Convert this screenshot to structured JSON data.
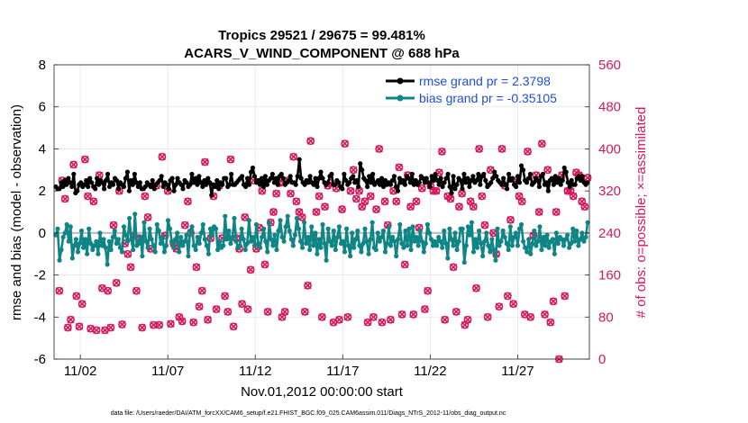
{
  "chart_data": {
    "type": "line",
    "title_line1": "Tropics 29521 / 29675 = 99.481%",
    "title_line2": "ACARS_V_WIND_COMPONENT @ 688 hPa",
    "xlabel": "Nov.01,2012 00:00:00 start",
    "ylabel_left": "rmse and bias (model - observation)",
    "ylabel_right": "# of obs: o=possible; ×=assimilated",
    "ylim_left": [
      -6,
      8
    ],
    "ylim_right": [
      0,
      560
    ],
    "xlim": [
      0.5,
      31.1
    ],
    "left_ticks": [
      -6,
      -4,
      -2,
      0,
      2,
      4,
      6,
      8
    ],
    "right_ticks": [
      0,
      80,
      160,
      240,
      320,
      400,
      480,
      560
    ],
    "x_tick_labels": [
      {
        "x": 2,
        "label": "11/02"
      },
      {
        "x": 7,
        "label": "11/07"
      },
      {
        "x": 12,
        "label": "11/12"
      },
      {
        "x": 17,
        "label": "11/17"
      },
      {
        "x": 22,
        "label": "11/22"
      },
      {
        "x": 27,
        "label": "11/27"
      }
    ],
    "footnote": "data file: /Users/raeder/DAI/ATM_forcXX/CAM6_setup/f.e21.FHIST_BGC.f09_025.CAM6assim.011/Diags_NTrS_2012-11/obs_diag_output.nc",
    "colors": {
      "rmse": "#000000",
      "bias": "#0f8585",
      "obs": "#d6185a",
      "zero": "#bfbfbf",
      "legend_text": "#1f4fd8"
    },
    "series": [
      {
        "name": "rmse grand pr = 2.3798",
        "values": [
          2.2,
          2.1,
          2.1,
          2.4,
          2.2,
          2.5,
          2.3,
          2.6,
          2.4,
          2.2,
          2.8,
          1.9,
          2.0,
          2.3,
          2.4,
          2.2,
          2.3,
          2.5,
          2.2,
          2.6,
          2.4,
          2.2,
          2.1,
          2.6,
          2.3,
          2.5,
          2.4,
          2.1,
          2.5,
          2.8,
          2.2,
          2.4,
          2.3,
          2.6,
          2.5,
          2.1,
          2.4,
          2.3,
          2.2,
          2.6,
          2.9,
          2.0,
          2.5,
          2.3,
          2.8,
          2.4,
          2.2,
          2.4,
          2.1,
          2.1,
          2.2,
          2.4,
          2.3,
          2.2,
          2.5,
          2.1,
          2.3,
          2.4,
          2.5,
          2.7,
          2.2,
          2.4,
          2.3,
          2.1,
          2.5,
          2.6,
          2.0,
          2.3,
          2.6,
          2.4,
          2.3,
          2.1,
          2.5,
          2.4,
          2.2,
          2.3,
          2.8,
          2.4,
          2.6,
          2.3,
          2.7,
          2.4,
          2.2,
          2.5,
          2.3,
          2.6,
          2.4,
          1.8,
          2.3,
          2.2,
          2.5,
          2.1,
          2.4,
          2.3,
          2.6,
          2.6,
          2.2,
          2.3,
          2.8,
          2.3,
          2.3,
          2.4,
          2.5,
          2.6,
          2.7,
          2.3,
          2.2,
          2.6,
          2.3,
          2.9,
          3.1,
          2.7,
          2.4,
          2.5,
          2.3,
          2.6,
          2.2,
          2.7,
          2.3,
          2.5,
          2.6,
          2.8,
          2.4,
          2.6,
          2.3,
          2.7,
          2.8,
          2.6,
          2.3,
          2.4,
          2.5,
          2.7,
          2.4,
          2.4,
          2.3,
          2.7,
          3.5,
          2.6,
          2.4,
          2.3,
          2.5,
          2.4,
          2.7,
          2.4,
          2.3,
          2.6,
          2.2,
          2.6,
          2.9,
          2.6,
          2.4,
          2.3,
          2.4,
          2.7,
          2.8,
          2.3,
          2.3,
          2.5,
          2.4,
          2.2,
          2.1,
          2.8,
          2.5,
          2.3,
          2.4,
          2.6,
          2.7,
          2.4,
          2.5,
          2.2,
          3.3,
          3.0,
          2.6,
          2.5,
          2.2,
          2.7,
          2.4,
          2.8,
          2.3,
          2.4,
          2.5,
          2.3,
          2.6,
          2.2,
          2.5,
          2.3,
          2.4,
          2.3,
          2.5,
          2.7,
          2.2,
          2.0,
          2.6,
          2.4,
          2.5,
          2.3,
          2.7,
          2.6,
          2.4,
          2.8,
          2.3,
          2.5,
          2.3,
          2.4,
          2.7,
          2.6,
          2.4,
          2.6,
          2.4,
          2.2,
          2.7,
          2.5,
          2.8,
          2.5,
          2.3,
          2.6,
          2.2,
          2.4,
          2.6,
          2.8,
          2.2,
          1.9,
          2.7,
          2.1,
          2.3,
          2.6,
          2.5,
          2.1,
          2.8,
          2.4,
          2.6,
          2.2,
          2.5,
          2.7,
          2.4,
          2.5,
          2.8,
          2.3,
          2.7,
          2.8,
          2.5,
          2.2,
          2.3,
          2.4,
          2.6,
          2.9,
          2.7,
          2.5,
          2.4,
          2.3,
          2.6,
          2.3,
          2.1,
          2.8,
          2.5,
          2.6,
          2.3,
          2.2,
          2.7,
          2.4,
          3.2,
          3.0,
          2.5,
          2.4,
          2.6,
          2.8,
          2.3,
          2.4,
          2.6,
          2.5,
          2.2,
          2.7,
          2.8,
          2.3,
          2.4,
          2.0,
          2.5,
          2.6,
          2.3,
          2.7,
          2.4,
          2.6,
          2.3,
          2.5,
          3.1,
          2.9,
          2.4,
          2.2,
          2.5,
          2.3,
          2.3,
          2.6,
          2.7,
          2.5,
          2.7,
          2.4,
          2.3,
          2.4
        ]
      },
      {
        "name": "bias grand pr = -0.35105",
        "values": [
          -0.1,
          0.2,
          -1.3,
          -0.8,
          -0.2,
          0.0,
          0.4,
          -0.4,
          0.3,
          -1.2,
          -0.6,
          -0.3,
          -0.9,
          -0.5,
          0.1,
          -0.7,
          -0.3,
          -1.0,
          0.2,
          -0.5,
          -0.8,
          -0.6,
          -0.4,
          -1.0,
          0.0,
          -0.6,
          -0.3,
          -0.7,
          -1.5,
          -0.4,
          -0.8,
          -0.2,
          0.1,
          -0.5,
          -0.3,
          -0.7,
          -0.9,
          0.3,
          -0.1,
          -0.4,
          0.7,
          -0.3,
          -0.8,
          0.9,
          -0.6,
          -0.5,
          -0.2,
          -1.1,
          0.5,
          -0.4,
          -0.7,
          0.2,
          -0.3,
          -0.6,
          -0.9,
          0.4,
          0.1,
          -0.5,
          -0.2,
          -0.9,
          -0.6,
          0.6,
          0.2,
          -0.4,
          -0.7,
          -0.3,
          0.0,
          -0.9,
          -0.2,
          -0.6,
          -0.4,
          -0.1,
          -1.1,
          0.1,
          0.3,
          -0.6,
          -0.8,
          -0.2,
          -0.5,
          0.0,
          0.4,
          -0.3,
          -0.6,
          -1.0,
          0.2,
          -0.1,
          0.3,
          0.2,
          -0.8,
          -0.4,
          -0.7,
          -0.6,
          0.8,
          -0.3,
          0.1,
          -0.5,
          -0.2,
          0.7,
          -0.4,
          -0.7,
          -0.6,
          0.2,
          -0.3,
          -0.8,
          -0.5,
          0.6,
          -0.4,
          -0.2,
          -0.6,
          0.4,
          -0.5,
          -0.7,
          -0.2,
          0.2,
          -0.4,
          -0.9,
          0.5,
          -0.3,
          -0.6,
          -0.1,
          -0.8,
          0.1,
          0.6,
          -0.2,
          -0.4,
          0.3,
          0.8,
          0.1,
          -0.3,
          -0.6,
          -0.1,
          0.7,
          0.2,
          -0.4,
          -0.7,
          0.5,
          -0.5,
          -0.2,
          -0.8,
          0.3,
          -0.6,
          0.0,
          -1.0,
          -0.3,
          -0.7,
          0.4,
          -0.5,
          -1.3,
          0.2,
          -0.4,
          -0.6,
          0.1,
          -0.8,
          -0.2,
          0.3,
          -0.5,
          -0.4,
          -0.9,
          0.2,
          -0.6,
          -1.1,
          0.0,
          -0.7,
          -0.3,
          0.1,
          -0.6,
          -0.9,
          -0.5,
          0.2,
          -0.4,
          -1.0,
          -0.3,
          0.5,
          -0.7,
          -0.8,
          0.0,
          -0.4,
          -0.2,
          0.1,
          -0.9,
          -0.5,
          0.3,
          -0.6,
          -0.2,
          -0.4,
          -1.1,
          -0.3,
          0.4,
          -0.5,
          -0.7,
          0.1,
          -0.6,
          0.2,
          -0.8,
          0.3,
          -0.4,
          -0.2,
          -0.6,
          0.1,
          -0.4,
          -0.9,
          -0.5,
          0.4,
          0.0,
          -0.3,
          -0.6,
          -0.4,
          -0.6,
          -0.2,
          -0.4,
          -0.7,
          0.1,
          -0.5,
          -1.2,
          0.2,
          -0.3,
          -0.6,
          0.0,
          -0.8,
          -0.4,
          0.2,
          0.2,
          -1.4,
          -0.6,
          0.3,
          -0.1,
          0.5,
          -0.9,
          -0.3,
          -0.7,
          0.1,
          -0.5,
          -1.1,
          -0.4,
          0.0,
          -0.6,
          -0.9,
          -0.3,
          -0.8,
          -1.3,
          0.2,
          -0.6,
          -0.4,
          0.1,
          -0.2,
          -0.5,
          -0.8,
          0.3,
          -0.6,
          -0.2,
          0.0,
          -0.6,
          0.2,
          0.4,
          -0.4,
          -0.7,
          -0.9,
          -0.3,
          -1.0,
          -0.5,
          0.1,
          -0.6,
          -0.4,
          0.3,
          -0.8,
          -0.2,
          -0.6,
          -0.1,
          -0.7,
          -0.4,
          -0.3,
          -1.0,
          0.0,
          -0.5,
          -0.2,
          -0.3,
          -0.6,
          -0.3,
          -0.1,
          -0.7,
          -0.5,
          0.2,
          -0.4,
          0.1,
          -0.6,
          -0.3,
          0.0,
          -0.4,
          -0.2,
          0.5
        ]
      }
    ],
    "obs_series": {
      "name": "obs counts (possible / assimilated)",
      "values": [
        130,
        340,
        305,
        60,
        75,
        370,
        120,
        62,
        105,
        380,
        310,
        58,
        300,
        55,
        350,
        135,
        55,
        130,
        60,
        255,
        145,
        320,
        66,
        220,
        200,
        175,
        235,
        130,
        230,
        60,
        310,
        270,
        210,
        65,
        330,
        65,
        385,
        235,
        320,
        67,
        220,
        210,
        80,
        72,
        255,
        300,
        240,
        70,
        175,
        100,
        130,
        375,
        75,
        230,
        310,
        95,
        330,
        230,
        120,
        90,
        380,
        62,
        230,
        210,
        105,
        270,
        95,
        170,
        340,
        210,
        250,
        320,
        180,
        90,
        260,
        280,
        315,
        335,
        80,
        90,
        340,
        315,
        385,
        300,
        280,
        270,
        90,
        140,
        415,
        235,
        280,
        310,
        80,
        290,
        330,
        335,
        70,
        325,
        75,
        285,
        410,
        80,
        320,
        360,
        305,
        320,
        290,
        300,
        70,
        310,
        80,
        285,
        400,
        70,
        300,
        255,
        75,
        320,
        300,
        365,
        85,
        180,
        350,
        290,
        85,
        300,
        250,
        325,
        95,
        130,
        330,
        320,
        320,
        355,
        395,
        75,
        310,
        305,
        175,
        90,
        290,
        315,
        65,
        75,
        300,
        290,
        135,
        400,
        310,
        255,
        80,
        360,
        240,
        200,
        100,
        400,
        330,
        120,
        265,
        105,
        340,
        310,
        300,
        85,
        395,
        80,
        235,
        350,
        280,
        410,
        85,
        360,
        70,
        110,
        280,
        0,
        350,
        120,
        320,
        320,
        310,
        355,
        350,
        300,
        290,
        345
      ]
    }
  }
}
